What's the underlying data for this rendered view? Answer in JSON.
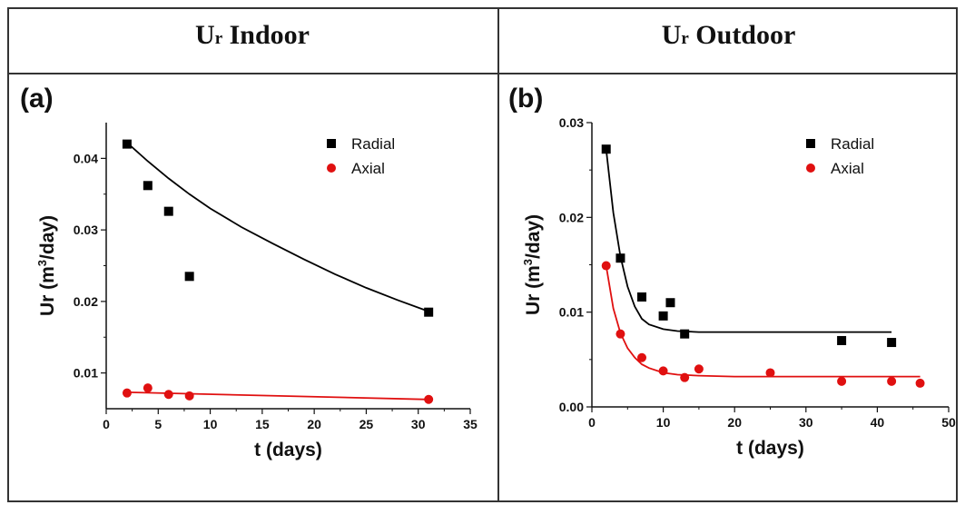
{
  "headers": {
    "left": {
      "main": "U",
      "sub": "r",
      "rest": " Indoor"
    },
    "right": {
      "main": "U",
      "sub": "r",
      "rest": " Outdoor"
    }
  },
  "colors": {
    "radial": "#000000",
    "axial": "#e01010"
  },
  "chart_data": [
    {
      "type": "scatter",
      "panel_label": "(a)",
      "xlabel": "t (days)",
      "ylabel_parts": [
        "Ur (m",
        "3",
        "/day)"
      ],
      "xlim": [
        0,
        35
      ],
      "ylim": [
        0.005,
        0.045
      ],
      "xticks": [
        0,
        5,
        10,
        15,
        20,
        25,
        30,
        35
      ],
      "yticks": [
        0.01,
        0.02,
        0.03,
        0.04
      ],
      "ytick_labels": [
        "0.01",
        "0.02",
        "0.03",
        "0.04"
      ],
      "legend": [
        "Radial",
        "Axial"
      ],
      "legend_position": "top-right",
      "series": [
        {
          "name": "Radial",
          "marker": "square",
          "x": [
            2,
            4,
            6,
            8,
            31
          ],
          "y": [
            0.042,
            0.0362,
            0.0326,
            0.0235,
            0.0185
          ],
          "fit": {
            "x": [
              2,
              4,
              6,
              8,
              10,
              13,
              16,
              19,
              22,
              25,
              28,
              31
            ],
            "y": [
              0.0422,
              0.0396,
              0.0372,
              0.035,
              0.033,
              0.0304,
              0.0281,
              0.0259,
              0.0238,
              0.0219,
              0.0202,
              0.0186
            ]
          }
        },
        {
          "name": "Axial",
          "marker": "circle",
          "x": [
            2,
            4,
            6,
            8,
            31
          ],
          "y": [
            0.0072,
            0.0079,
            0.007,
            0.0068,
            0.0063
          ],
          "fit": {
            "x": [
              2,
              31
            ],
            "y": [
              0.0073,
              0.0063
            ]
          }
        }
      ]
    },
    {
      "type": "scatter",
      "panel_label": "(b)",
      "xlabel": "t (days)",
      "ylabel_parts": [
        "Ur (m",
        "3",
        "/day)"
      ],
      "xlim": [
        0,
        50
      ],
      "ylim": [
        0,
        0.03
      ],
      "xticks": [
        0,
        10,
        20,
        30,
        40,
        50
      ],
      "yticks": [
        0,
        0.01,
        0.02,
        0.03
      ],
      "ytick_labels": [
        "0.00",
        "0.01",
        "0.02",
        "0.03"
      ],
      "legend": [
        "Radial",
        "Axial"
      ],
      "legend_position": "top-right",
      "series": [
        {
          "name": "Radial",
          "marker": "square",
          "x": [
            2,
            4,
            7,
            10,
            11,
            13,
            35,
            42
          ],
          "y": [
            0.0272,
            0.0157,
            0.0116,
            0.0096,
            0.011,
            0.0077,
            0.007,
            0.0068
          ],
          "fit": {
            "x": [
              2,
              3,
              4,
              5,
              6,
              7,
              8,
              10,
              12,
              15,
              20,
              30,
              42
            ],
            "y": [
              0.0272,
              0.0205,
              0.0159,
              0.0127,
              0.0106,
              0.0093,
              0.0087,
              0.0082,
              0.008,
              0.0079,
              0.0079,
              0.0079,
              0.0079
            ]
          }
        },
        {
          "name": "Axial",
          "marker": "circle",
          "x": [
            2,
            4,
            7,
            10,
            13,
            15,
            25,
            35,
            42,
            46
          ],
          "y": [
            0.0149,
            0.0077,
            0.0052,
            0.0038,
            0.0031,
            0.004,
            0.0036,
            0.0027,
            0.0027,
            0.0025
          ],
          "fit": {
            "x": [
              2,
              3,
              4,
              5,
              6,
              7,
              8,
              10,
              12,
              15,
              20,
              30,
              46
            ],
            "y": [
              0.0149,
              0.0104,
              0.0078,
              0.0062,
              0.0052,
              0.0045,
              0.0041,
              0.0036,
              0.0034,
              0.0033,
              0.0032,
              0.0032,
              0.0032
            ]
          }
        }
      ]
    }
  ]
}
